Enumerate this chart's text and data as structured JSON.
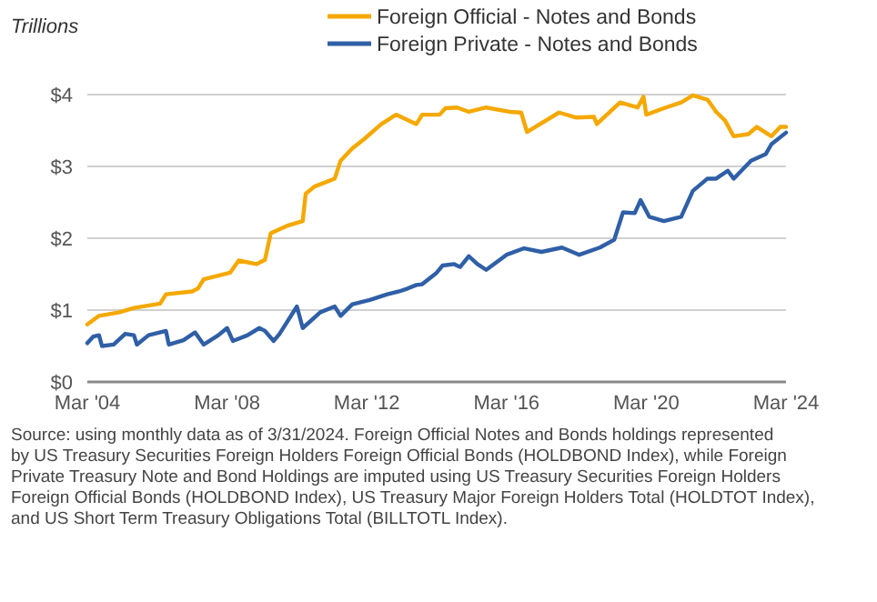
{
  "chart_data": {
    "type": "line",
    "ylabel": "Trillions",
    "legend": "top",
    "grid": "y",
    "line_style": "solid",
    "marker": "none",
    "xlim": [
      "2004-03",
      "2024-03"
    ],
    "xticks": [
      {
        "value": "2004-03",
        "label": "Mar '04"
      },
      {
        "value": "2008-03",
        "label": "Mar '08"
      },
      {
        "value": "2012-03",
        "label": "Mar '12"
      },
      {
        "value": "2016-03",
        "label": "Mar '16"
      },
      {
        "value": "2020-03",
        "label": "Mar '20"
      },
      {
        "value": "2024-03",
        "label": "Mar '24"
      }
    ],
    "ylim": [
      0,
      4
    ],
    "yticks": [
      {
        "value": 0,
        "label": "$0"
      },
      {
        "value": 1,
        "label": "$1"
      },
      {
        "value": 2,
        "label": "$2"
      },
      {
        "value": 3,
        "label": "$3"
      },
      {
        "value": 4,
        "label": "$4"
      }
    ],
    "series": [
      {
        "name": "Foreign Official - Notes and Bonds",
        "color": "#f5a800",
        "x": [
          "2004-03",
          "2004-07",
          "2005-02",
          "2005-07",
          "2006-04",
          "2006-06",
          "2007-03",
          "2007-05",
          "2007-07",
          "2008-04",
          "2008-07",
          "2009-01",
          "2009-04",
          "2009-06",
          "2009-12",
          "2010-05",
          "2010-06",
          "2010-09",
          "2011-04",
          "2011-06",
          "2011-10",
          "2012-02",
          "2012-08",
          "2013-01",
          "2013-08",
          "2013-10",
          "2014-04",
          "2014-06",
          "2014-10",
          "2015-02",
          "2015-08",
          "2016-04",
          "2016-08",
          "2016-10",
          "2017-09",
          "2018-03",
          "2018-09",
          "2018-10",
          "2019-06",
          "2019-12",
          "2020-02",
          "2020-03",
          "2020-09",
          "2021-03",
          "2021-07",
          "2021-12",
          "2022-03",
          "2022-06",
          "2022-09",
          "2023-02",
          "2023-05",
          "2023-10",
          "2024-01",
          "2024-03"
        ],
        "values": [
          0.8,
          0.92,
          0.97,
          1.03,
          1.09,
          1.22,
          1.26,
          1.3,
          1.43,
          1.52,
          1.69,
          1.64,
          1.7,
          2.07,
          2.18,
          2.24,
          2.62,
          2.72,
          2.83,
          3.08,
          3.25,
          3.38,
          3.59,
          3.72,
          3.59,
          3.72,
          3.72,
          3.81,
          3.82,
          3.76,
          3.82,
          3.76,
          3.75,
          3.48,
          3.75,
          3.68,
          3.69,
          3.59,
          3.89,
          3.82,
          3.97,
          3.72,
          3.81,
          3.89,
          3.99,
          3.93,
          3.76,
          3.64,
          3.42,
          3.45,
          3.55,
          3.42,
          3.55,
          3.55
        ]
      },
      {
        "name": "Foreign Private - Notes and Bonds",
        "color": "#2f5fa6",
        "x": [
          "2004-03",
          "2004-05",
          "2004-07",
          "2004-08",
          "2004-12",
          "2005-04",
          "2005-07",
          "2005-08",
          "2005-12",
          "2006-06",
          "2006-07",
          "2006-12",
          "2007-04",
          "2007-07",
          "2007-12",
          "2008-03",
          "2008-05",
          "2008-10",
          "2009-02",
          "2009-04",
          "2009-07",
          "2009-09",
          "2010-03",
          "2010-05",
          "2010-11",
          "2011-04",
          "2011-06",
          "2011-10",
          "2012-04",
          "2012-10",
          "2013-02",
          "2013-05",
          "2013-08",
          "2013-10",
          "2014-03",
          "2014-05",
          "2014-09",
          "2014-11",
          "2015-02",
          "2015-05",
          "2015-08",
          "2016-03",
          "2016-09",
          "2017-03",
          "2017-10",
          "2018-04",
          "2018-11",
          "2019-04",
          "2019-07",
          "2019-11",
          "2020-01",
          "2020-04",
          "2020-09",
          "2021-03",
          "2021-07",
          "2021-12",
          "2022-03",
          "2022-07",
          "2022-09",
          "2023-03",
          "2023-08",
          "2023-10",
          "2024-03"
        ],
        "values": [
          0.54,
          0.63,
          0.65,
          0.5,
          0.52,
          0.67,
          0.65,
          0.52,
          0.65,
          0.71,
          0.52,
          0.58,
          0.69,
          0.52,
          0.65,
          0.75,
          0.57,
          0.65,
          0.75,
          0.71,
          0.57,
          0.67,
          1.05,
          0.75,
          0.97,
          1.05,
          0.92,
          1.08,
          1.14,
          1.22,
          1.26,
          1.3,
          1.35,
          1.36,
          1.52,
          1.62,
          1.64,
          1.6,
          1.75,
          1.64,
          1.56,
          1.77,
          1.86,
          1.81,
          1.87,
          1.77,
          1.87,
          1.98,
          2.36,
          2.35,
          2.53,
          2.3,
          2.24,
          2.3,
          2.66,
          2.83,
          2.83,
          2.94,
          2.83,
          3.08,
          3.17,
          3.31,
          3.47
        ]
      }
    ],
    "annotations": [
      "Source: using monthly data as of 3/31/2024. Foreign Official Notes and Bonds holdings represented by US Treasury Securities Foreign Holders Foreign Official Bonds (HOLDBOND Index), while Foreign Private Treasury Note and Bond Holdings are imputed using US Treasury Securities Foreign Holders Foreign Official Bonds (HOLDBOND Index), US Treasury Major Foreign Holders Total (HOLDTOT Index), and US Short Term Treasury Obligations Total (BILLTOTL Index)."
    ]
  }
}
